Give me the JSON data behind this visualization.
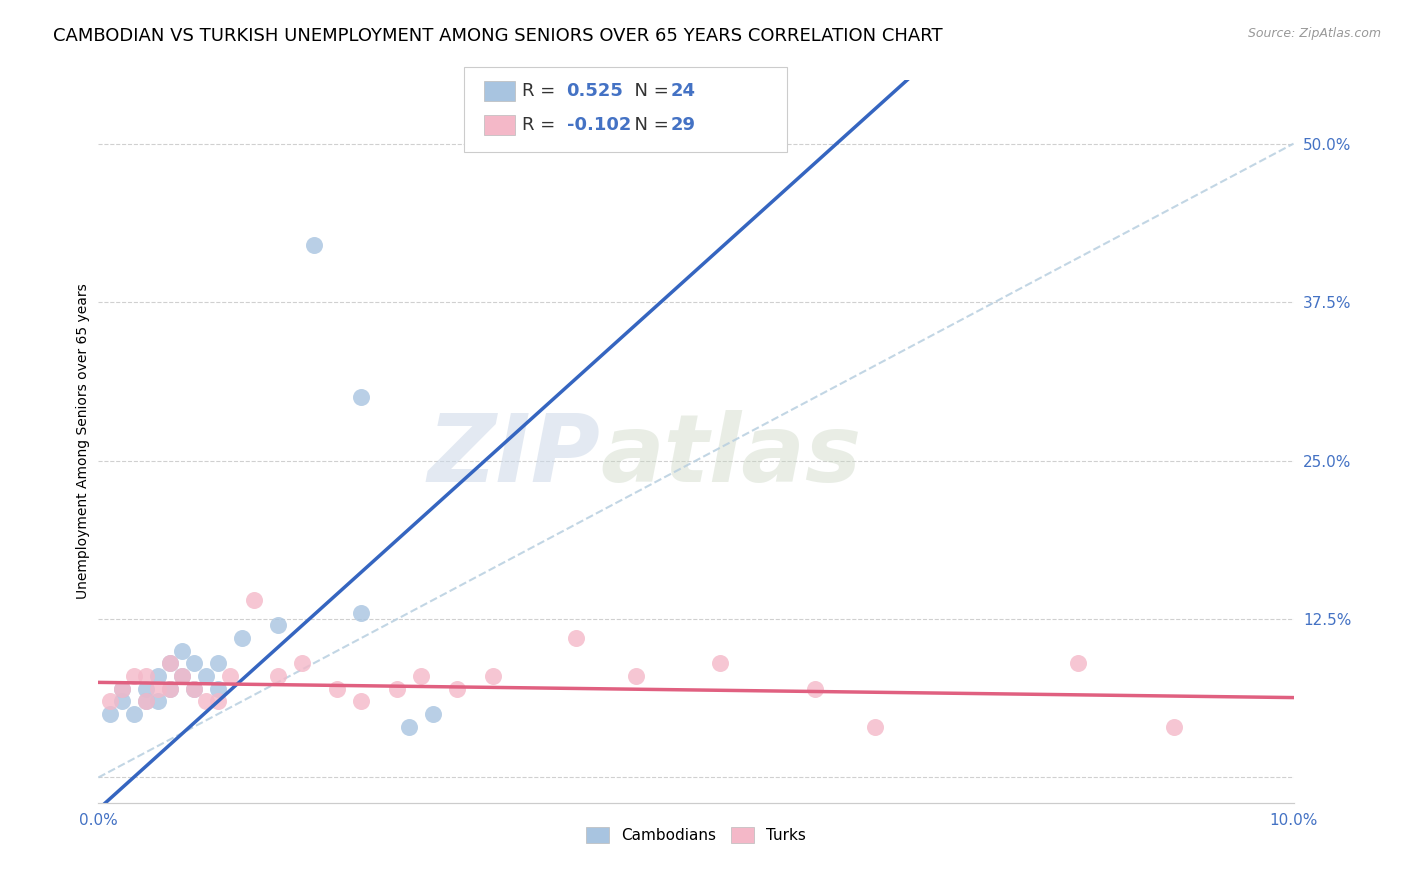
{
  "title": "CAMBODIAN VS TURKISH UNEMPLOYMENT AMONG SENIORS OVER 65 YEARS CORRELATION CHART",
  "source": "Source: ZipAtlas.com",
  "ylabel": "Unemployment Among Seniors over 65 years",
  "xlim": [
    0.0,
    0.1
  ],
  "ylim": [
    -0.02,
    0.55
  ],
  "plot_ylim": [
    0.0,
    0.55
  ],
  "xticks": [
    0.0,
    0.025,
    0.05,
    0.075,
    0.1
  ],
  "xtick_labels": [
    "0.0%",
    "",
    "",
    "",
    "10.0%"
  ],
  "yticks_right": [
    0.0,
    0.125,
    0.25,
    0.375,
    0.5
  ],
  "ytick_labels_right": [
    "",
    "12.5%",
    "25.0%",
    "37.5%",
    "50.0%"
  ],
  "grid_yticks": [
    0.0,
    0.125,
    0.25,
    0.375,
    0.5
  ],
  "R_cambodian": 0.525,
  "N_cambodian": 24,
  "R_turkish": -0.102,
  "N_turkish": 29,
  "cambodian_color": "#a8c4e0",
  "turkish_color": "#f4b8c8",
  "cambodian_line_color": "#3565c0",
  "turkish_line_color": "#e06080",
  "diagonal_color": "#b8cfe0",
  "watermark_zip": "ZIP",
  "watermark_atlas": "atlas",
  "cambodian_x": [
    0.001,
    0.002,
    0.002,
    0.003,
    0.004,
    0.004,
    0.005,
    0.005,
    0.006,
    0.006,
    0.007,
    0.007,
    0.008,
    0.008,
    0.009,
    0.01,
    0.01,
    0.012,
    0.015,
    0.018,
    0.022,
    0.022,
    0.026,
    0.028
  ],
  "cambodian_y": [
    0.05,
    0.06,
    0.07,
    0.05,
    0.07,
    0.06,
    0.08,
    0.06,
    0.09,
    0.07,
    0.1,
    0.08,
    0.09,
    0.07,
    0.08,
    0.09,
    0.07,
    0.11,
    0.12,
    0.42,
    0.3,
    0.13,
    0.04,
    0.05
  ],
  "turkish_x": [
    0.001,
    0.002,
    0.003,
    0.004,
    0.004,
    0.005,
    0.006,
    0.006,
    0.007,
    0.008,
    0.009,
    0.01,
    0.011,
    0.013,
    0.015,
    0.017,
    0.02,
    0.022,
    0.025,
    0.027,
    0.03,
    0.033,
    0.04,
    0.045,
    0.052,
    0.06,
    0.065,
    0.082,
    0.09
  ],
  "turkish_y": [
    0.06,
    0.07,
    0.08,
    0.06,
    0.08,
    0.07,
    0.09,
    0.07,
    0.08,
    0.07,
    0.06,
    0.06,
    0.08,
    0.14,
    0.08,
    0.09,
    0.07,
    0.06,
    0.07,
    0.08,
    0.07,
    0.08,
    0.11,
    0.08,
    0.09,
    0.07,
    0.04,
    0.09,
    0.04
  ],
  "title_fontsize": 13,
  "label_fontsize": 10,
  "tick_fontsize": 11,
  "legend_fontsize": 13,
  "R_label_color": "#4472c4",
  "tick_color": "#4472c4"
}
